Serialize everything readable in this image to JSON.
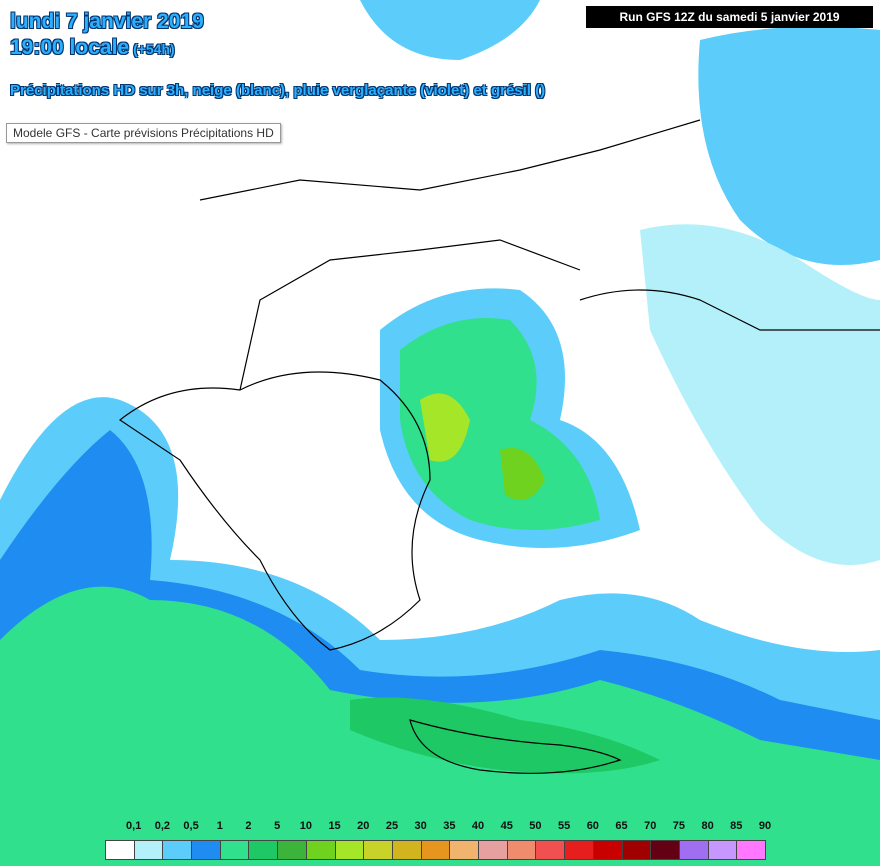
{
  "header": {
    "date": "lundi 7 janvier 2019",
    "time": "19:00 locale",
    "offset": "(+54h)",
    "description": "Précipitations HD sur 3h, neige (blanc), pluie verglaçante (violet) et grésil ()",
    "run": "Run GFS 12Z du samedi 5 janvier 2019"
  },
  "tooltip": "Modele GFS - Carte prévisions Précipitations HD",
  "legend": {
    "labels": [
      "0,1",
      "0,2",
      "0,5",
      "1",
      "2",
      "5",
      "10",
      "15",
      "20",
      "25",
      "30",
      "35",
      "40",
      "45",
      "50",
      "55",
      "60",
      "65",
      "70",
      "75",
      "80",
      "85",
      "90"
    ],
    "colors": [
      "#ffffff",
      "#b4f0fa",
      "#5ccdfa",
      "#1e8cf0",
      "#30e08c",
      "#1ec864",
      "#3cb43c",
      "#6ed21e",
      "#a5e628",
      "#c8d228",
      "#d2b41e",
      "#e6961e",
      "#f0b46e",
      "#e6a0a0",
      "#f08c6e",
      "#f05050",
      "#e61e1e",
      "#c80000",
      "#a00000",
      "#640014",
      "#a06ef0",
      "#c896ff",
      "#ff78ff"
    ]
  }
}
